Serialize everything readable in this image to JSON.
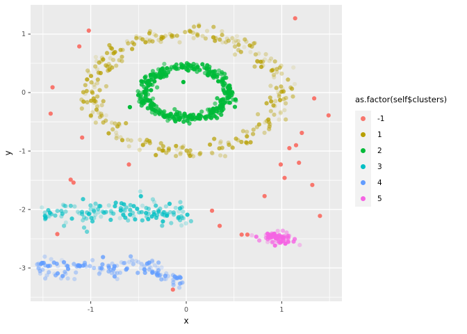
{
  "legend": {
    "title": "as.factor(self$clusters)",
    "items": [
      {
        "label": "-1",
        "color": "#F8766D"
      },
      {
        "label": "1",
        "color": "#B79F00"
      },
      {
        "label": "2",
        "color": "#00BA38"
      },
      {
        "label": "3",
        "color": "#00BFC4"
      },
      {
        "label": "4",
        "color": "#619CFF"
      },
      {
        "label": "5",
        "color": "#F564E3"
      }
    ]
  },
  "chart_data": {
    "type": "scatter",
    "title": "",
    "xlabel": "x",
    "ylabel": "y",
    "xlim": [
      -1.63,
      1.63
    ],
    "ylim": [
      -3.57,
      1.5
    ],
    "x_ticks": [
      -1,
      0,
      1
    ],
    "y_ticks": [
      1,
      0,
      -1,
      -2,
      -3
    ],
    "x_minor_ticks": [
      -1.5,
      -0.5,
      0.5,
      1.5
    ],
    "y_minor_ticks": [
      0.5,
      -0.5,
      -1.5,
      -2.5,
      -3.5
    ],
    "grid": true,
    "legend_position": "right",
    "panel_bg": "#EBEBEB",
    "grid_color": "#FFFFFF",
    "tick_color": "#333333",
    "tick_label_color": "#4D4D4D",
    "point_radius": 3.1,
    "clusters": [
      {
        "label": "1",
        "color": "#B79F00",
        "shape": "ring",
        "cx": 0,
        "cy": 0,
        "r": 1.0,
        "r_sd": 0.07,
        "n": 300,
        "alpha": [
          0.12,
          0.8
        ],
        "seed": 11,
        "extra": []
      },
      {
        "label": "2",
        "color": "#00BA38",
        "shape": "ring",
        "cx": 0,
        "cy": 0,
        "r": 0.44,
        "r_sd": 0.04,
        "n": 340,
        "alpha": [
          0.55,
          1.0
        ],
        "seed": 22,
        "extra": [
          [
            -0.03,
            0.18,
            1.0
          ],
          [
            0.52,
            -0.14,
            0.55
          ],
          [
            -0.59,
            -0.25,
            1.0
          ],
          [
            -0.23,
            0.49,
            0.5
          ]
        ]
      },
      {
        "label": "3",
        "color": "#00BFC4",
        "shape": "band",
        "x0": -1.57,
        "x1": 0.02,
        "cy": -2.04,
        "y_sd": 0.09,
        "tail_start": -0.2,
        "tail_slope": -1.0,
        "n": 135,
        "alpha": [
          0.18,
          0.85
        ],
        "seed": 33,
        "extra": [
          [
            -1.28,
            -2.28,
            0.5
          ],
          [
            -1.07,
            -2.31,
            0.5
          ],
          [
            -1.04,
            -2.38,
            0.55
          ],
          [
            0.05,
            -2.2,
            0.5
          ]
        ]
      },
      {
        "label": "4",
        "color": "#619CFF",
        "shape": "band",
        "x0": -1.57,
        "x1": -0.04,
        "cy": -2.99,
        "y_sd": 0.08,
        "tail_start": -0.4,
        "tail_slope": -0.9,
        "n": 135,
        "alpha": [
          0.15,
          0.85
        ],
        "seed": 44,
        "extra": [
          [
            -0.07,
            -3.15,
            0.5
          ],
          [
            -0.04,
            -3.25,
            0.45
          ],
          [
            -1.31,
            -3.18,
            0.3
          ],
          [
            -1.24,
            -3.18,
            0.3
          ],
          [
            -1.17,
            -3.19,
            0.3
          ]
        ]
      },
      {
        "label": "5",
        "color": "#F564E3",
        "shape": "blob",
        "cx": 0.97,
        "cy": -2.5,
        "x_sd": 0.1,
        "y_sd": 0.07,
        "n": 62,
        "alpha": [
          0.3,
          1.0
        ],
        "seed": 55,
        "extra": []
      }
    ],
    "noise": {
      "label": "-1",
      "color": "#F8766D",
      "points": [
        [
          -1.02,
          1.06
        ],
        [
          1.14,
          1.27
        ],
        [
          -1.12,
          0.79
        ],
        [
          -1.4,
          0.09
        ],
        [
          -1.42,
          -0.36
        ],
        [
          1.34,
          -0.1
        ],
        [
          1.49,
          -0.39
        ],
        [
          -1.09,
          -0.77
        ],
        [
          1.21,
          -0.69
        ],
        [
          1.15,
          -0.9
        ],
        [
          1.08,
          -0.95
        ],
        [
          1.18,
          -1.2
        ],
        [
          0.99,
          -1.23
        ],
        [
          -0.6,
          -1.23
        ],
        [
          1.03,
          -1.46
        ],
        [
          -1.21,
          -1.49
        ],
        [
          -1.18,
          -1.54
        ],
        [
          1.32,
          -1.58
        ],
        [
          0.82,
          -1.77
        ],
        [
          0.27,
          -2.02
        ],
        [
          1.4,
          -2.11
        ],
        [
          0.35,
          -2.28
        ],
        [
          -1.35,
          -2.42
        ],
        [
          0.58,
          -2.43
        ],
        [
          0.64,
          -2.43
        ],
        [
          -0.14,
          -3.37
        ]
      ]
    }
  }
}
